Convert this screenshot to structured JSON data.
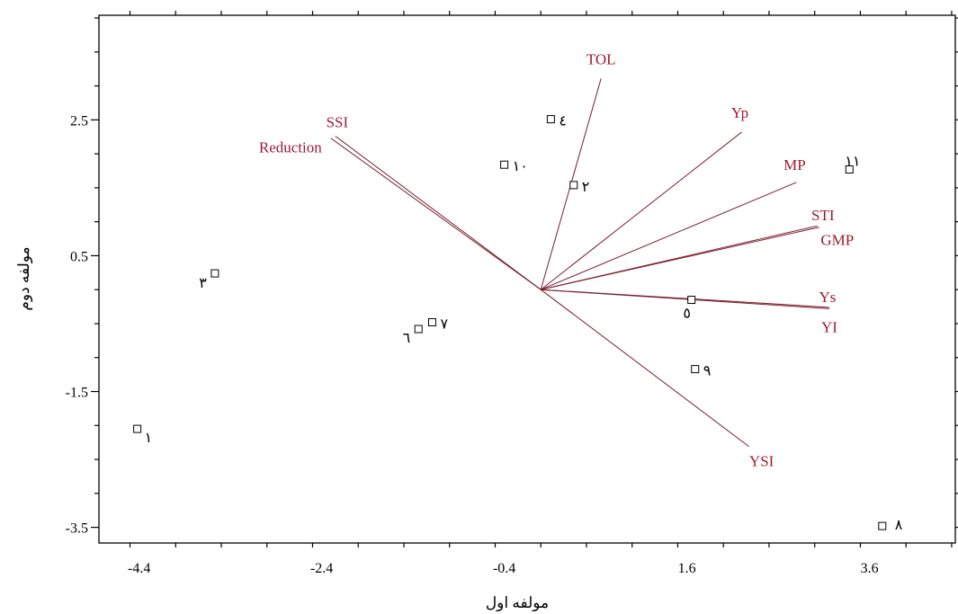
{
  "chart_data": {
    "type": "scatter",
    "subtype": "biplot",
    "title": "",
    "xlabel": "مولفه اول",
    "ylabel": "مولفه دوم",
    "xlim": [
      -4.84,
      4.54
    ],
    "ylim": [
      -3.73,
      4.04
    ],
    "xticks": [
      -4.4,
      -2.4,
      -0.4,
      1.6,
      3.6
    ],
    "yticks": [
      2.5,
      0.5,
      -1.5,
      -3.5
    ],
    "xtick_labels": [
      "-4.4",
      "-2.4",
      "-0.4",
      "1.6",
      "3.6"
    ],
    "ytick_labels": [
      "2.5",
      "0.5",
      "-1.5",
      "-3.5"
    ],
    "grid": false,
    "origin": [
      0.0,
      0.0
    ],
    "points": [
      {
        "label": "١",
        "x": -4.42,
        "y": -2.05
      },
      {
        "label": "٢",
        "x": 0.36,
        "y": 1.54
      },
      {
        "label": "٣",
        "x": -3.57,
        "y": 0.24
      },
      {
        "label": "٤",
        "x": 0.11,
        "y": 2.51
      },
      {
        "label": "٥",
        "x": 1.65,
        "y": -0.15
      },
      {
        "label": "٦",
        "x": -1.34,
        "y": -0.58
      },
      {
        "label": "٧",
        "x": -1.19,
        "y": -0.48
      },
      {
        "label": "٨",
        "x": 3.74,
        "y": -3.48
      },
      {
        "label": "٩",
        "x": 1.69,
        "y": -1.17
      },
      {
        "label": "١٠",
        "x": -0.4,
        "y": 1.84
      },
      {
        "label": "١١",
        "x": 3.38,
        "y": 1.77
      }
    ],
    "vectors": [
      {
        "name": "TOL",
        "x": 0.66,
        "y": 3.11
      },
      {
        "name": "Yp",
        "x": 2.2,
        "y": 2.32
      },
      {
        "name": "MP",
        "x": 2.8,
        "y": 1.58
      },
      {
        "name": "STI",
        "x": 3.03,
        "y": 0.94
      },
      {
        "name": "GMP",
        "x": 3.05,
        "y": 0.92
      },
      {
        "name": "Ys",
        "x": 3.16,
        "y": -0.26
      },
      {
        "name": "YI",
        "x": 3.16,
        "y": -0.28
      },
      {
        "name": "YSI",
        "x": 2.28,
        "y": -2.31
      },
      {
        "name": "SSI",
        "x": -2.25,
        "y": 2.26
      },
      {
        "name": "Reduction",
        "x": -2.3,
        "y": 2.23
      }
    ],
    "colors": {
      "vector": "#7a1e2c",
      "label": "#9b1b30",
      "axis": "#000000"
    }
  }
}
